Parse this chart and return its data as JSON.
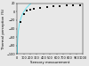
{
  "scatter_x": [
    50,
    100,
    150,
    200,
    250,
    350,
    450,
    550,
    650,
    750,
    850,
    950
  ],
  "scatter_y": [
    -25,
    -5,
    2,
    5,
    7,
    9,
    11,
    12,
    13,
    14,
    15,
    16
  ],
  "curve_a": 27.0,
  "curve_b": -125.0,
  "curve_color": "#55ddee",
  "marker_color": "#111111",
  "xlabel": "Sensory measurement",
  "ylabel": "Thermal perception (%)",
  "xlim": [
    0,
    1000
  ],
  "ylim": [
    -100,
    20
  ],
  "xticks": [
    0,
    100,
    200,
    300,
    400,
    500,
    600,
    700,
    800,
    900,
    1000
  ],
  "yticks": [
    -100,
    -80,
    -60,
    -40,
    -20,
    0,
    20
  ],
  "background_color": "#e8e8e8",
  "tick_fontsize": 2.5,
  "label_fontsize": 2.8
}
